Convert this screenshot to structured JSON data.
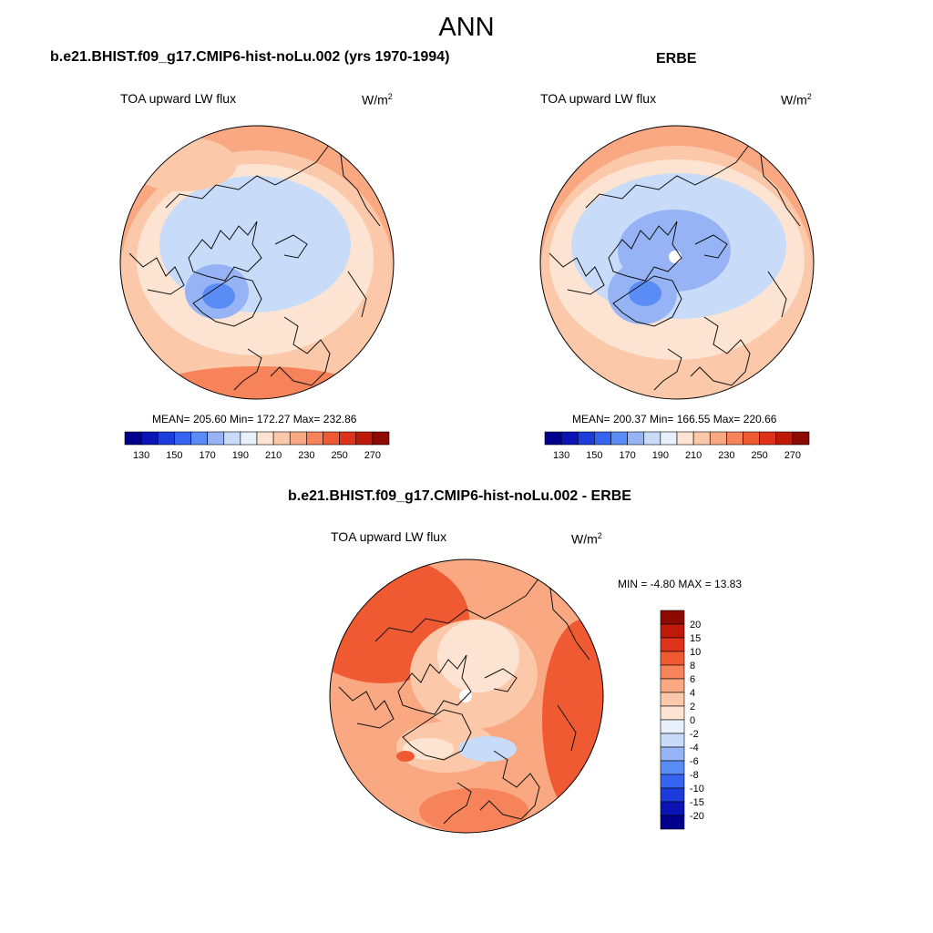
{
  "figure": {
    "title": "ANN"
  },
  "panels": {
    "model": {
      "title": "b.e21.BHIST.f09_g17.CMIP6-hist-noLu.002 (yrs 1970-1994)",
      "variable": "TOA upward LW flux",
      "units_base": "W/m",
      "units_exp": "2",
      "stats": "MEAN= 205.60  Min= 172.27  Max= 232.86"
    },
    "obs": {
      "title": "ERBE",
      "variable": "TOA upward LW flux",
      "units_base": "W/m",
      "units_exp": "2",
      "stats": "MEAN= 200.37  Min= 166.55  Max= 220.66"
    },
    "diff": {
      "title": "b.e21.BHIST.f09_g17.CMIP6-hist-noLu.002 - ERBE",
      "variable": "TOA upward LW flux",
      "units_base": "W/m",
      "units_exp": "2",
      "stats": "MIN =  -4.80 MAX =  13.83"
    }
  },
  "colors": {
    "abs_scale": [
      "#00008c",
      "#0a14b4",
      "#1c3cdc",
      "#3464f0",
      "#5a8cf5",
      "#96b4f5",
      "#c8dcfa",
      "#e8f0fc",
      "#fde4d2",
      "#fbc8aa",
      "#f9a882",
      "#f7835a",
      "#f05a32",
      "#de321a",
      "#be1a0a",
      "#8c0a00"
    ],
    "diff_scale": [
      "#00008c",
      "#0a14b4",
      "#1c3cdc",
      "#3464f0",
      "#5a8cf5",
      "#96b4f5",
      "#c8dcfa",
      "#e8f0fc",
      "#fde4d2",
      "#fbc8aa",
      "#f9a882",
      "#f7835a",
      "#f05a32",
      "#de321a",
      "#be1a0a",
      "#8c0a00"
    ]
  },
  "chart_data": [
    {
      "type": "heatmap",
      "projection": "north polar stereographic",
      "title": "b.e21.BHIST.f09_g17.CMIP6-hist-noLu.002 (yrs 1970-1994)",
      "variable": "TOA upward LW flux",
      "units": "W/m2",
      "mean": 205.6,
      "min": 172.27,
      "max": 232.86,
      "colorbar": {
        "orientation": "horizontal",
        "levels": [
          130,
          140,
          150,
          160,
          170,
          180,
          190,
          200,
          210,
          220,
          230,
          240,
          250,
          260,
          270
        ],
        "tick_labels": [
          "130",
          "150",
          "170",
          "190",
          "210",
          "230",
          "250",
          "270"
        ]
      }
    },
    {
      "type": "heatmap",
      "projection": "north polar stereographic",
      "title": "ERBE",
      "variable": "TOA upward LW flux",
      "units": "W/m2",
      "mean": 200.37,
      "min": 166.55,
      "max": 220.66,
      "colorbar": {
        "orientation": "horizontal",
        "levels": [
          130,
          140,
          150,
          160,
          170,
          180,
          190,
          200,
          210,
          220,
          230,
          240,
          250,
          260,
          270
        ],
        "tick_labels": [
          "130",
          "150",
          "170",
          "190",
          "210",
          "230",
          "250",
          "270"
        ]
      }
    },
    {
      "type": "heatmap",
      "projection": "north polar stereographic",
      "title": "b.e21.BHIST.f09_g17.CMIP6-hist-noLu.002 - ERBE",
      "variable": "TOA upward LW flux",
      "units": "W/m2",
      "min": -4.8,
      "max": 13.83,
      "colorbar": {
        "orientation": "vertical",
        "levels": [
          20,
          15,
          10,
          8,
          6,
          4,
          2,
          0,
          -2,
          -4,
          -6,
          -8,
          -10,
          -15,
          -20
        ],
        "tick_labels": [
          "20",
          "15",
          "10",
          "8",
          "6",
          "4",
          "2",
          "0",
          "-2",
          "-4",
          "-6",
          "-8",
          "-10",
          "-15",
          "-20"
        ]
      }
    }
  ]
}
